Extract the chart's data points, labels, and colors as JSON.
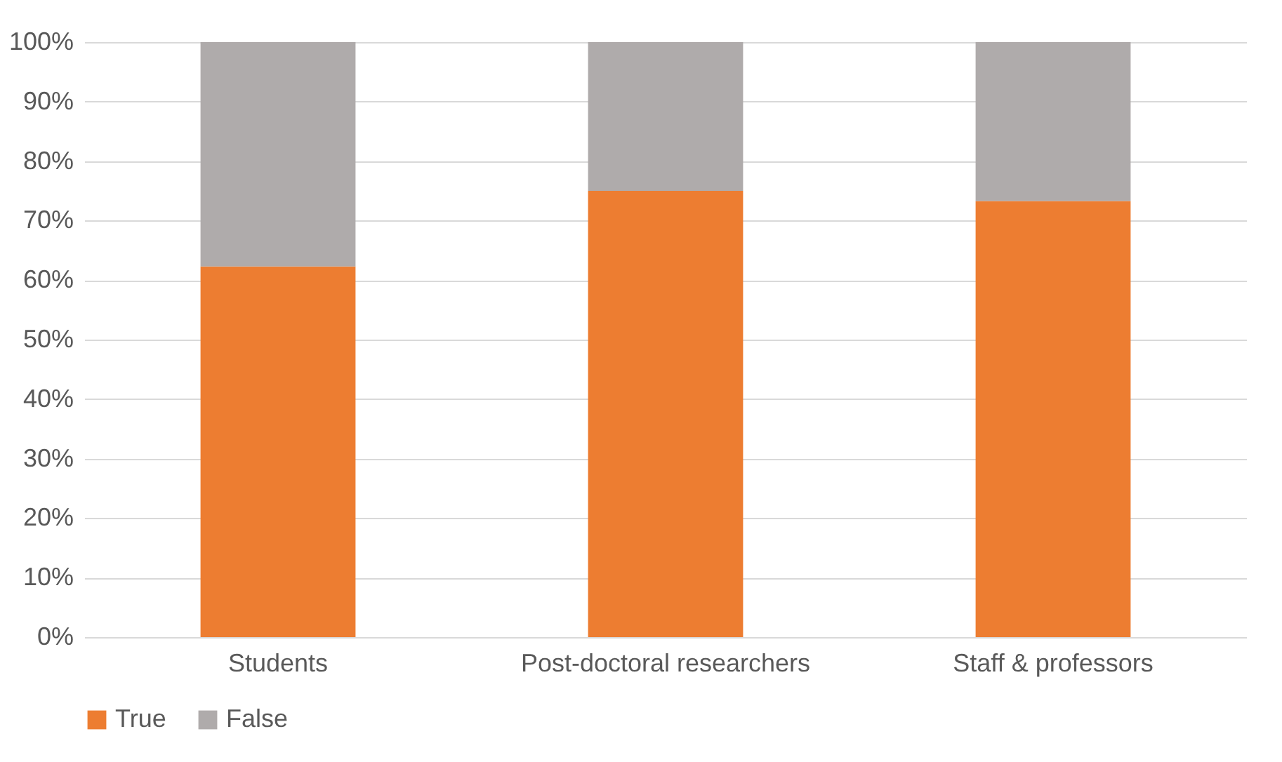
{
  "chart_data": {
    "type": "bar",
    "stacked": true,
    "categories": [
      "Students",
      "Post-doctoral researchers",
      "Staff & professors"
    ],
    "series": [
      {
        "name": "True",
        "color": "#ed7d31",
        "values": [
          62.3,
          75.0,
          73.3
        ]
      },
      {
        "name": "False",
        "color": "#afabab",
        "values": [
          37.7,
          25.0,
          26.7
        ]
      }
    ],
    "ylim": [
      0,
      100
    ],
    "yticks": [
      {
        "value": 0,
        "label": "0%"
      },
      {
        "value": 10,
        "label": "10%"
      },
      {
        "value": 20,
        "label": "20%"
      },
      {
        "value": 30,
        "label": "30%"
      },
      {
        "value": 40,
        "label": "40%"
      },
      {
        "value": 50,
        "label": "50%"
      },
      {
        "value": 60,
        "label": "60%"
      },
      {
        "value": 70,
        "label": "70%"
      },
      {
        "value": 80,
        "label": "80%"
      },
      {
        "value": 90,
        "label": "90%"
      },
      {
        "value": 100,
        "label": "100%"
      }
    ],
    "grid": "y",
    "legend": "bottom"
  }
}
